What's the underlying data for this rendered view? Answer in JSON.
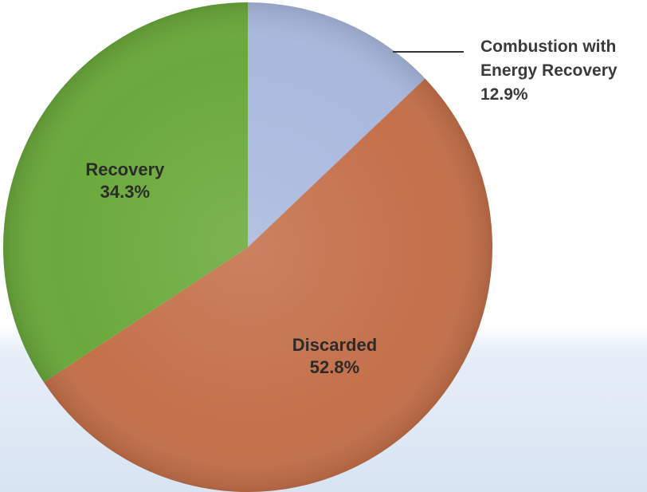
{
  "chart_data": {
    "type": "pie",
    "categories": [
      "Combustion with Energy Recovery",
      "Discarded",
      "Recovery"
    ],
    "values": [
      12.9,
      52.8,
      34.3
    ],
    "value_labels": [
      "12.9%",
      "52.8%",
      "34.3%"
    ],
    "colors": [
      "#a9b9de",
      "#c4704a",
      "#6aa93b"
    ]
  }
}
